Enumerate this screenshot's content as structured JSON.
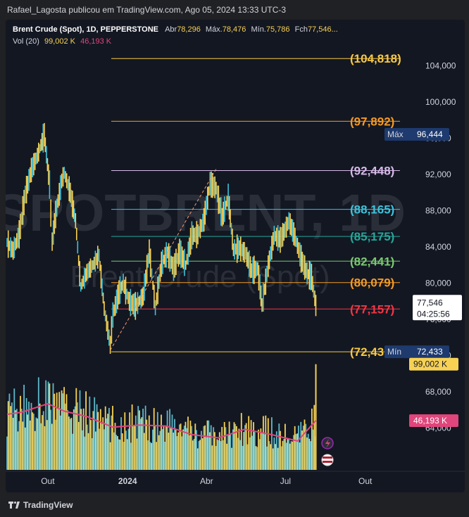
{
  "header": {
    "publisher_line": "Rafael_Lagosta publicou em TradingView.com, Ago 05, 2024 13:33 UTC-3"
  },
  "legend": {
    "symbol": "Brent Crude (Spot), 1D, PEPPERSTONE",
    "open_label": "Abr",
    "open_value": "78,296",
    "high_label": "Máx.",
    "high_value": "78,476",
    "low_label": "Mín.",
    "low_value": "75,786",
    "close_label": "Fch",
    "close_value": "77,546...",
    "vol_label": "Vol (20)",
    "vol_value": "99,002 K",
    "vol_ma_value": "46,193 K"
  },
  "watermark": {
    "symbol": "SPOTBRENT, 1D",
    "name": "Brent Crude (Spot)"
  },
  "price_axis": {
    "ticks": [
      "104,000",
      "100,000",
      "96,000",
      "92,000",
      "88,000",
      "84,000",
      "80,000",
      "76,000",
      "72,000",
      "68,000",
      "64,000"
    ]
  },
  "price_badges": {
    "max_label": "Máx",
    "max_value": "96,444",
    "min_label": "Mín",
    "min_value": "72,433",
    "last_price": "77,546",
    "countdown": "04:25:56",
    "volume": "99,002 K",
    "volume_ma": "46,193 K"
  },
  "time_axis": {
    "labels": [
      "Out",
      "2024",
      "Abr",
      "Jul",
      "Out"
    ]
  },
  "footer": {
    "brand": "TradingView"
  },
  "colors": {
    "background": "#131722",
    "candle": "#f7d154",
    "candle_alt": "#3fc1d9",
    "volume_ma": "#e0457b",
    "text": "#d1d4dc"
  },
  "chart_data": {
    "type": "line",
    "title": "Brent Crude (Spot), 1D, PEPPERSTONE",
    "ylim": [
      62.5,
      106
    ],
    "x_range": [
      "2023-08-15",
      "2024-11-10"
    ],
    "levels": [
      {
        "label": "(104,818)",
        "value": 104.818,
        "color": "#f7c843"
      },
      {
        "label": "(97,892)",
        "value": 97.892,
        "color": "#f59a23"
      },
      {
        "label": "(92,448)",
        "value": 92.448,
        "color": "#d6b8e8"
      },
      {
        "label": "(88,165)",
        "value": 88.165,
        "color": "#3fc1d9"
      },
      {
        "label": "(85,175)",
        "value": 85.175,
        "color": "#26a69a"
      },
      {
        "label": "(82,441)",
        "value": 82.441,
        "color": "#7bc96f"
      },
      {
        "label": "(80,079)",
        "value": 80.079,
        "color": "#f59a23"
      },
      {
        "label": "(77,157)",
        "value": 77.157,
        "color": "#f23645"
      },
      {
        "label": "(72,43",
        "value": 72.433,
        "color": "#f7c843"
      }
    ],
    "price_series": {
      "name": "Brent Crude (Spot)",
      "points": [
        [
          "2023-08-15",
          84.5
        ],
        [
          "2023-08-22",
          83.6
        ],
        [
          "2023-08-29",
          85.4
        ],
        [
          "2023-09-05",
          89.8
        ],
        [
          "2023-09-12",
          92.5
        ],
        [
          "2023-09-19",
          94.1
        ],
        [
          "2023-09-27",
          96.4
        ],
        [
          "2023-10-03",
          90.9
        ],
        [
          "2023-10-06",
          84.6
        ],
        [
          "2023-10-10",
          87.6
        ],
        [
          "2023-10-17",
          91.3
        ],
        [
          "2023-10-20",
          92.2
        ],
        [
          "2023-10-27",
          90.0
        ],
        [
          "2023-11-02",
          86.9
        ],
        [
          "2023-11-08",
          79.6
        ],
        [
          "2023-11-15",
          81.2
        ],
        [
          "2023-11-22",
          82.0
        ],
        [
          "2023-11-29",
          83.1
        ],
        [
          "2023-12-05",
          77.2
        ],
        [
          "2023-12-12",
          73.2
        ],
        [
          "2023-12-15",
          76.5
        ],
        [
          "2023-12-22",
          79.0
        ],
        [
          "2023-12-27",
          80.0
        ],
        [
          "2024-01-03",
          78.0
        ],
        [
          "2024-01-10",
          77.5
        ],
        [
          "2024-01-19",
          78.6
        ],
        [
          "2024-01-26",
          83.5
        ],
        [
          "2024-02-02",
          77.3
        ],
        [
          "2024-02-09",
          82.1
        ],
        [
          "2024-02-16",
          83.4
        ],
        [
          "2024-02-23",
          81.6
        ],
        [
          "2024-03-01",
          83.5
        ],
        [
          "2024-03-08",
          82.0
        ],
        [
          "2024-03-15",
          85.3
        ],
        [
          "2024-03-22",
          85.4
        ],
        [
          "2024-03-29",
          87.0
        ],
        [
          "2024-04-05",
          91.0
        ],
        [
          "2024-04-12",
          90.5
        ],
        [
          "2024-04-19",
          87.3
        ],
        [
          "2024-04-26",
          89.5
        ],
        [
          "2024-05-02",
          83.7
        ],
        [
          "2024-05-09",
          83.9
        ],
        [
          "2024-05-16",
          83.3
        ],
        [
          "2024-05-23",
          81.4
        ],
        [
          "2024-05-30",
          81.6
        ],
        [
          "2024-06-04",
          77.6
        ],
        [
          "2024-06-11",
          81.9
        ],
        [
          "2024-06-18",
          85.3
        ],
        [
          "2024-06-25",
          84.8
        ],
        [
          "2024-07-02",
          86.2
        ],
        [
          "2024-07-05",
          86.9
        ],
        [
          "2024-07-12",
          85.1
        ],
        [
          "2024-07-19",
          82.7
        ],
        [
          "2024-07-26",
          81.1
        ],
        [
          "2024-07-31",
          80.7
        ],
        [
          "2024-08-05",
          77.546
        ]
      ]
    },
    "volume_series": {
      "name": "Vol (20)",
      "ylim": [
        0,
        112
      ],
      "last_value": 99.002,
      "ma_points": [
        [
          "2023-08-15",
          52
        ],
        [
          "2023-09-01",
          54
        ],
        [
          "2023-10-01",
          62
        ],
        [
          "2023-10-20",
          55
        ],
        [
          "2023-11-15",
          50
        ],
        [
          "2023-12-15",
          40
        ],
        [
          "2024-01-15",
          42
        ],
        [
          "2024-02-15",
          41
        ],
        [
          "2024-03-15",
          33
        ],
        [
          "2024-04-15",
          30
        ],
        [
          "2024-05-15",
          38
        ],
        [
          "2024-06-15",
          33
        ],
        [
          "2024-07-15",
          27
        ],
        [
          "2024-08-05",
          46.193
        ]
      ]
    }
  }
}
